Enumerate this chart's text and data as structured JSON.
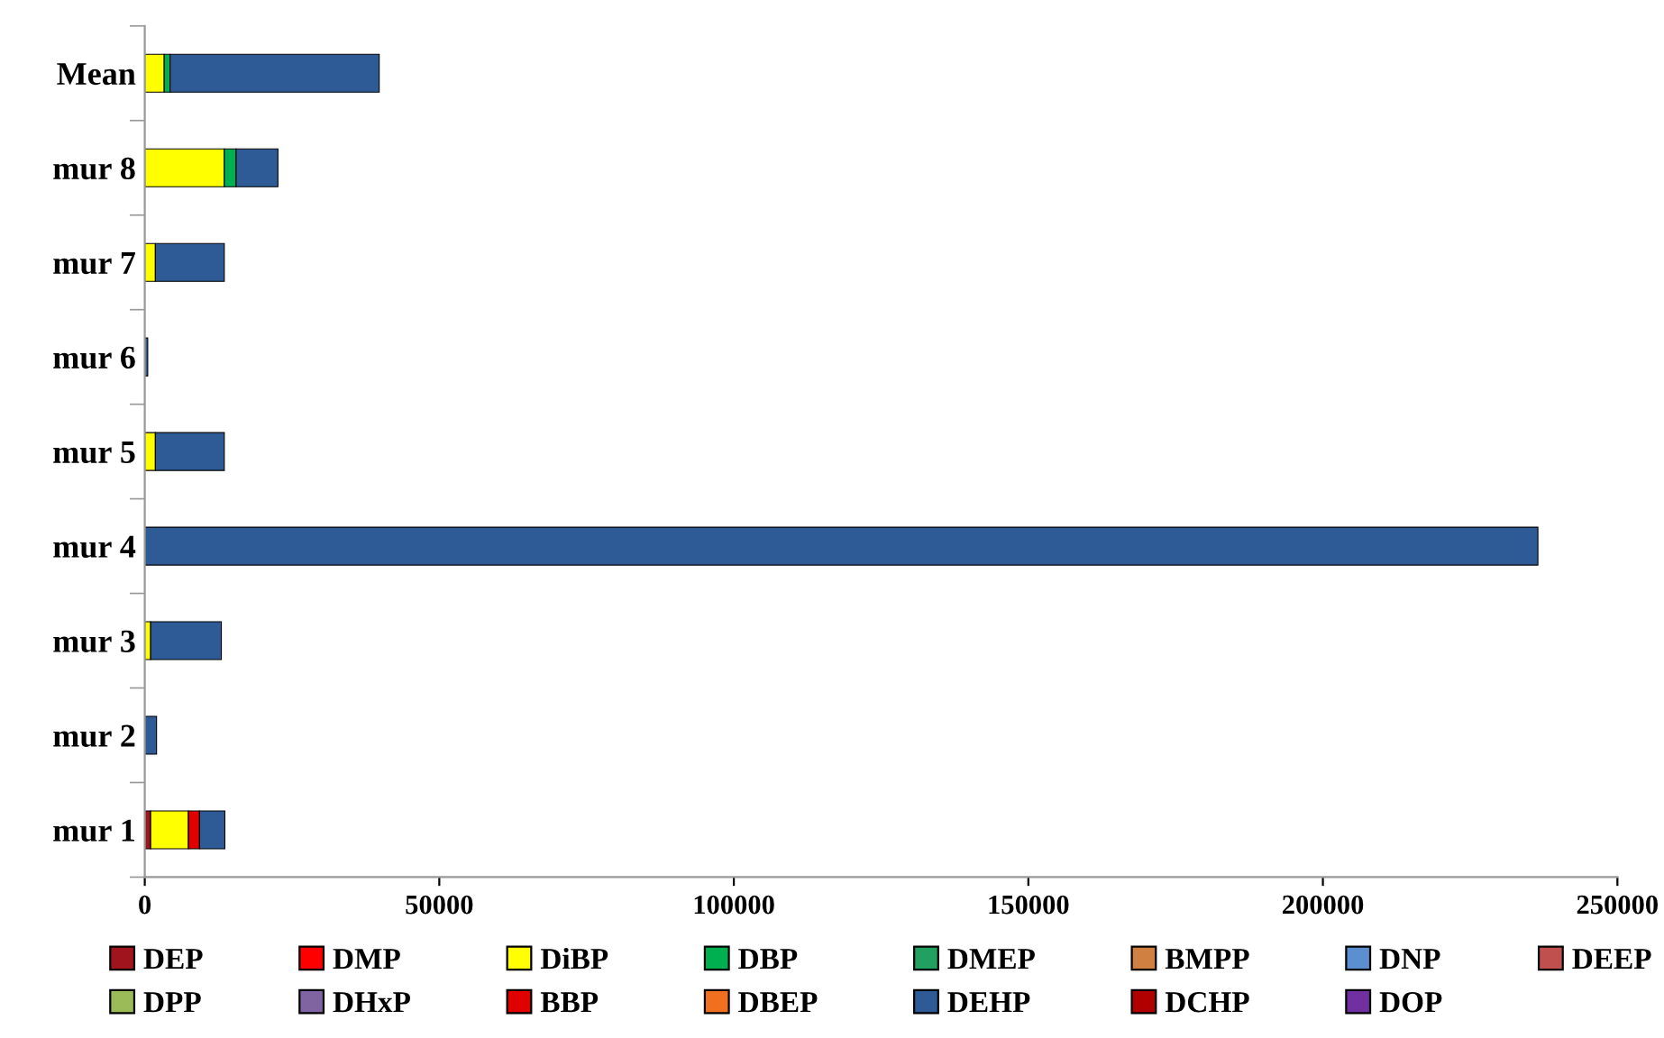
{
  "chart_data": {
    "type": "bar",
    "orientation": "horizontal",
    "stacked": true,
    "categories": [
      "Mean",
      "mur 8",
      "mur 7",
      "mur 6",
      "mur 5",
      "mur 4",
      "mur 3",
      "mur 2",
      "mur 1"
    ],
    "xlim": [
      0,
      250000
    ],
    "xticks": [
      0,
      50000,
      100000,
      150000,
      200000,
      250000
    ],
    "grid": false,
    "legend": "bottom",
    "series": [
      {
        "name": "DEP",
        "color": "#a0141e",
        "values": [
          0,
          0,
          0,
          0,
          0,
          0,
          0,
          0,
          1000
        ]
      },
      {
        "name": "DMP",
        "color": "#ff0000",
        "values": [
          0,
          0,
          0,
          0,
          0,
          0,
          0,
          0,
          0
        ]
      },
      {
        "name": "DiBP",
        "color": "#ffff00",
        "values": [
          3300,
          13500,
          1800,
          0,
          1800,
          0,
          1000,
          0,
          6400
        ]
      },
      {
        "name": "DBP",
        "color": "#00b050",
        "values": [
          1000,
          2000,
          0,
          0,
          0,
          0,
          0,
          0,
          0
        ]
      },
      {
        "name": "DMEP",
        "color": "#22a060",
        "values": [
          0,
          0,
          0,
          0,
          0,
          0,
          0,
          0,
          0
        ]
      },
      {
        "name": "BMPP",
        "color": "#d08040",
        "values": [
          0,
          0,
          0,
          0,
          0,
          0,
          0,
          0,
          0
        ]
      },
      {
        "name": "DNP",
        "color": "#5b8fd0",
        "values": [
          0,
          0,
          0,
          0,
          0,
          0,
          0,
          0,
          0
        ]
      },
      {
        "name": "DEEP",
        "color": "#c0504d",
        "values": [
          0,
          0,
          0,
          0,
          0,
          0,
          0,
          0,
          0
        ]
      },
      {
        "name": "DPP",
        "color": "#9bbb59",
        "values": [
          0,
          0,
          0,
          0,
          0,
          0,
          0,
          0,
          0
        ]
      },
      {
        "name": "DHxP",
        "color": "#8064a2",
        "values": [
          0,
          0,
          0,
          0,
          0,
          0,
          0,
          0,
          0
        ]
      },
      {
        "name": "BBP",
        "color": "#e00000",
        "values": [
          0,
          0,
          0,
          0,
          0,
          0,
          0,
          0,
          1900
        ]
      },
      {
        "name": "DBEP",
        "color": "#f07020",
        "values": [
          0,
          0,
          0,
          0,
          0,
          0,
          0,
          0,
          0
        ]
      },
      {
        "name": "DEHP",
        "color": "#2e5b96",
        "values": [
          35500,
          7100,
          11700,
          500,
          11700,
          236500,
          12000,
          2000,
          4300
        ]
      },
      {
        "name": "DCHP",
        "color": "#b00000",
        "values": [
          0,
          0,
          0,
          0,
          0,
          0,
          0,
          0,
          0
        ]
      },
      {
        "name": "DOP",
        "color": "#7030a0",
        "values": [
          0,
          0,
          0,
          0,
          0,
          0,
          0,
          0,
          0
        ]
      }
    ]
  }
}
